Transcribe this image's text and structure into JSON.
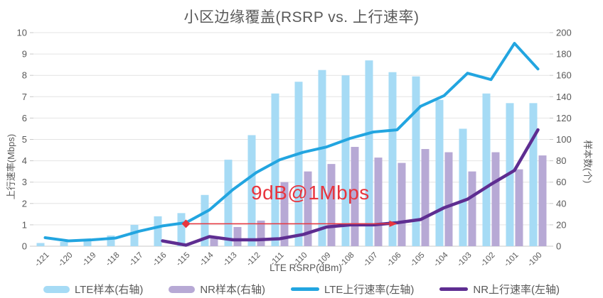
{
  "chart_data": {
    "type": "combo-bar-line",
    "title": "小区边缘覆盖(RSRP vs. 上行速率)",
    "xlabel": "LTE RSRP(dBm)",
    "ylabel_left": "上行速率(Mbps)",
    "ylabel_right": "样本数(个)",
    "ylim_left": [
      0,
      10
    ],
    "ytick_step_left": 1,
    "ylim_right": [
      0,
      200
    ],
    "ytick_step_right": 20,
    "grid": true,
    "legend_position": "bottom",
    "categories": [
      "-121",
      "-120",
      "-119",
      "-118",
      "-117",
      "-116",
      "-115",
      "-114",
      "-113",
      "-112",
      "-111",
      "-110",
      "-109",
      "-108",
      "-107",
      "-106",
      "-105",
      "-104",
      "-103",
      "-102",
      "-101",
      "-100"
    ],
    "series": [
      {
        "name": "LTE样本(右轴)",
        "type": "bar",
        "axis": "right",
        "color": "#A6DBF5",
        "values": [
          3,
          4,
          5,
          10,
          20,
          28,
          31,
          48,
          81,
          104,
          143,
          154,
          165,
          160,
          174,
          163,
          159,
          137,
          110,
          143,
          134,
          134
        ]
      },
      {
        "name": "NR样本(右轴)",
        "type": "bar",
        "axis": "right",
        "color": "#B7A9D5",
        "values": [
          null,
          null,
          null,
          null,
          null,
          null,
          null,
          9,
          18,
          24,
          60,
          70,
          77,
          93,
          83,
          78,
          91,
          88,
          70,
          88,
          72,
          85
        ]
      },
      {
        "name": "LTE上行速率(左轴)",
        "type": "line",
        "axis": "left",
        "color": "#22A5E0",
        "values": [
          0.4,
          0.25,
          0.3,
          0.38,
          0.7,
          0.95,
          1.1,
          1.7,
          2.65,
          3.45,
          4.05,
          4.4,
          4.65,
          5.05,
          5.35,
          5.45,
          6.55,
          7.05,
          8.1,
          7.8,
          9.5,
          8.3
        ]
      },
      {
        "name": "NR上行速率(左轴)",
        "type": "line",
        "axis": "left",
        "color": "#5E2D91",
        "values": [
          null,
          null,
          null,
          null,
          null,
          0.25,
          0.05,
          0.45,
          0.3,
          0.3,
          0.35,
          0.55,
          0.9,
          1.0,
          1.0,
          1.1,
          1.25,
          1.8,
          2.2,
          2.9,
          3.55,
          5.45
        ]
      }
    ],
    "annotation": {
      "text": "9dB@1Mbps",
      "y_mbps": 1.05,
      "from_category": "-115",
      "to_category": "-106",
      "color": "#E8353E"
    },
    "style_colors": {
      "text": "#595959",
      "gridline": "#E4E4E4",
      "axis_line": "#C9C9C9"
    }
  }
}
